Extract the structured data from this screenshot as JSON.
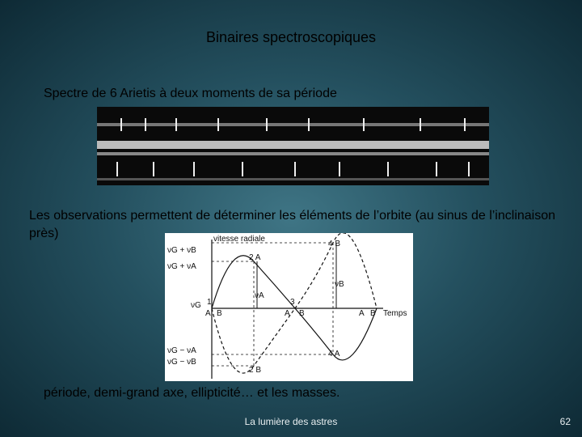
{
  "slide": {
    "title": "Binaires spectroscopiques",
    "spectrum_caption": "Spectre de 6 Arietis à deux moments de sa période",
    "observations": "Les observations permettent de déterminer les éléments de l’orbite (au sinus  de l’inclinaison près)",
    "diagram": {
      "labels": [
        "vitesse radiale",
        "νG + νB",
        "νG + νA",
        "νG",
        "νG − νA",
        "νG − νB",
        "1",
        "2 A",
        "4 B",
        "νA",
        "νB",
        "A",
        "B",
        "A",
        "B",
        "3",
        "A",
        "B",
        "Temps",
        "4 A",
        "2 B"
      ]
    },
    "conclusion": "période, demi-grand axe, ellipticité… et les masses.",
    "footer": "La lumière des astres",
    "page_number": "62"
  }
}
